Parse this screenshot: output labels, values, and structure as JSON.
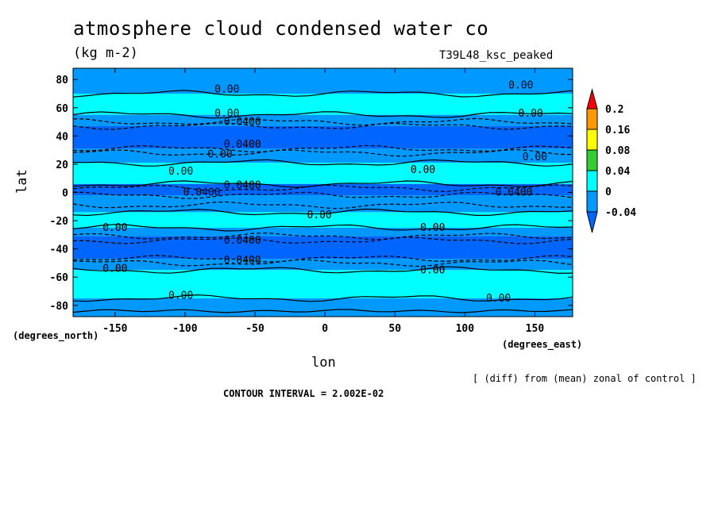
{
  "header": {
    "title": "atmosphere cloud condensed water co",
    "units": "(kg m-2)",
    "run": "T39L48_ksc_peaked"
  },
  "footer": {
    "note": "[ (diff) from (mean) zonal of control ]",
    "interval": "CONTOUR INTERVAL = 2.002E-02"
  },
  "chart_data": {
    "type": "heatmap",
    "title": "atmosphere cloud condensed water co",
    "units": "(kg m-2)",
    "xlabel": "lon",
    "xunit": "(degrees_east)",
    "ylabel": "lat",
    "yunit": "(degrees_north)",
    "xlim": [
      -180,
      177
    ],
    "ylim": [
      -88,
      88
    ],
    "xticks": [
      -150,
      -100,
      -50,
      0,
      50,
      100,
      150
    ],
    "yticks": [
      -80,
      -60,
      -40,
      -20,
      0,
      20,
      40,
      60,
      80
    ],
    "colorbar": {
      "levels": [
        0.2,
        0.16,
        0.08,
        0.04,
        0,
        -0.04
      ],
      "colors": [
        "#ff0000",
        "#ff9900",
        "#ffff00",
        "#33cc33",
        "#00ffff",
        "#0099ff",
        "#0066ff"
      ]
    },
    "bands": [
      {
        "from": 88,
        "to": 70,
        "level": "low",
        "color": "#0099ff"
      },
      {
        "from": 70,
        "to": 55,
        "level": "zero",
        "color": "#00ffff"
      },
      {
        "from": 55,
        "to": 47,
        "level": "low",
        "color": "#0099ff"
      },
      {
        "from": 47,
        "to": 31,
        "level": "neg",
        "color": "#0066ff"
      },
      {
        "from": 31,
        "to": 21,
        "level": "low",
        "color": "#0099ff"
      },
      {
        "from": 21,
        "to": 6,
        "level": "zero",
        "color": "#00ffff"
      },
      {
        "from": 6,
        "to": -2,
        "level": "neg",
        "color": "#0066ff"
      },
      {
        "from": -2,
        "to": -14,
        "level": "low",
        "color": "#0099ff"
      },
      {
        "from": -14,
        "to": -25,
        "level": "zero",
        "color": "#00ffff"
      },
      {
        "from": -25,
        "to": -31,
        "level": "low",
        "color": "#0099ff"
      },
      {
        "from": -31,
        "to": -47,
        "level": "neg",
        "color": "#0066ff"
      },
      {
        "from": -47,
        "to": -55,
        "level": "low",
        "color": "#0099ff"
      },
      {
        "from": -55,
        "to": -75,
        "level": "zero",
        "color": "#00ffff"
      },
      {
        "from": -75,
        "to": -88,
        "level": "low",
        "color": "#0099ff"
      }
    ],
    "contours": [
      {
        "lat": 70,
        "style": "solid"
      },
      {
        "lat": 55,
        "style": "solid"
      },
      {
        "lat": 50,
        "style": "dashed"
      },
      {
        "lat": 47,
        "style": "dashed"
      },
      {
        "lat": 31,
        "style": "dashed"
      },
      {
        "lat": 28,
        "style": "dashed"
      },
      {
        "lat": 21,
        "style": "solid"
      },
      {
        "lat": 6,
        "style": "solid"
      },
      {
        "lat": 3,
        "style": "dashed"
      },
      {
        "lat": -2,
        "style": "dashed"
      },
      {
        "lat": -9,
        "style": "dashed"
      },
      {
        "lat": -14,
        "style": "solid"
      },
      {
        "lat": -25,
        "style": "solid"
      },
      {
        "lat": -31,
        "style": "dashed"
      },
      {
        "lat": -34,
        "style": "dashed"
      },
      {
        "lat": -47,
        "style": "dashed"
      },
      {
        "lat": -50,
        "style": "dashed"
      },
      {
        "lat": -55,
        "style": "solid"
      },
      {
        "lat": -75,
        "style": "solid"
      },
      {
        "lat": -84,
        "style": "solid"
      }
    ],
    "contour_labels": [
      {
        "lon": -70,
        "lat": 73,
        "text": "0.00"
      },
      {
        "lon": 140,
        "lat": 76,
        "text": "0.00"
      },
      {
        "lon": -70,
        "lat": 56,
        "text": "0.00"
      },
      {
        "lon": 147,
        "lat": 56,
        "text": "0.00"
      },
      {
        "lon": -59,
        "lat": 50,
        "text": "0.0400"
      },
      {
        "lon": -59,
        "lat": 34,
        "text": "0.0400"
      },
      {
        "lon": -75,
        "lat": 27,
        "text": "0.00"
      },
      {
        "lon": 150,
        "lat": 25,
        "text": "0.00"
      },
      {
        "lon": -103,
        "lat": 15,
        "text": "0.00"
      },
      {
        "lon": 70,
        "lat": 16,
        "text": "0.00"
      },
      {
        "lon": -59,
        "lat": 5,
        "text": "0.0400"
      },
      {
        "lon": -88,
        "lat": 0,
        "text": "0.0400"
      },
      {
        "lon": 135,
        "lat": 0,
        "text": "0.0400"
      },
      {
        "lon": -4,
        "lat": -16,
        "text": "0.00"
      },
      {
        "lon": -150,
        "lat": -25,
        "text": "0.00"
      },
      {
        "lon": 77,
        "lat": -25,
        "text": "0.00"
      },
      {
        "lon": -59,
        "lat": -34,
        "text": "0.0400"
      },
      {
        "lon": -59,
        "lat": -48,
        "text": "0.0400"
      },
      {
        "lon": -150,
        "lat": -54,
        "text": "0.00"
      },
      {
        "lon": 77,
        "lat": -55,
        "text": "0.00"
      },
      {
        "lon": -103,
        "lat": -73,
        "text": "0.00"
      },
      {
        "lon": 124,
        "lat": -75,
        "text": "0.00"
      }
    ]
  }
}
